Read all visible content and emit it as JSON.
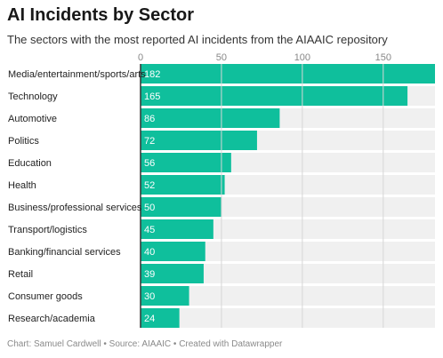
{
  "header": {
    "title": "AI Incidents by Sector",
    "subtitle": "The sectors with the most reported AI incidents from the AIAAIC repository"
  },
  "footer": {
    "credit": "Chart: Samuel Cardwell • Source: AIAAIC • Created with Datawrapper"
  },
  "colors": {
    "bar": "#0fbf9c",
    "track": "#f0f0f0",
    "grid": "#d6d6d6",
    "axis": "#333333",
    "tick_label": "#888888",
    "value_label": "#ffffff"
  },
  "chart_data": {
    "type": "bar",
    "orientation": "horizontal",
    "categories": [
      "Media/entertainment/sports/arts",
      "Technology",
      "Automotive",
      "Politics",
      "Education",
      "Health",
      "Business/professional services",
      "Transport/logistics",
      "Banking/financial services",
      "Retail",
      "Consumer goods",
      "Research/academia"
    ],
    "values": [
      182,
      165,
      86,
      72,
      56,
      52,
      50,
      45,
      40,
      39,
      30,
      24
    ],
    "xticks": [
      0,
      50,
      100,
      150
    ],
    "xlim": [
      0,
      182
    ],
    "grid": true,
    "value_labels": true
  }
}
